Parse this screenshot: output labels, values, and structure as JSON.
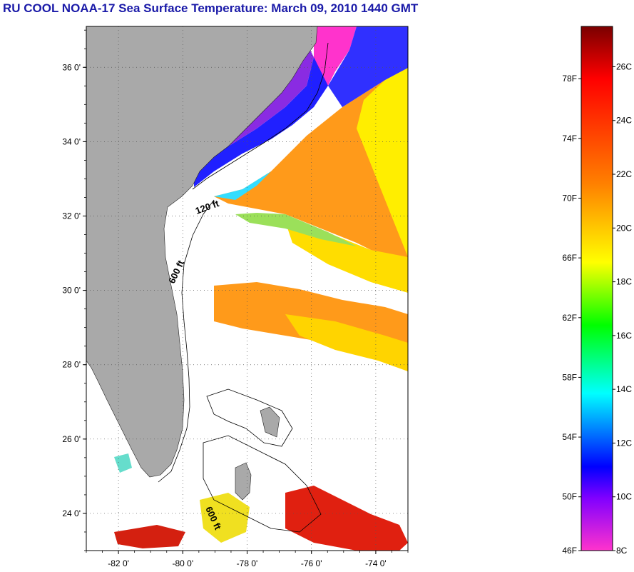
{
  "title": "RU COOL  NOAA-17  Sea Surface Temperature:  March 09, 2010 1440 GMT",
  "map": {
    "lat_ticks": [
      {
        "value": 36,
        "label": "36 0'"
      },
      {
        "value": 34,
        "label": "34 0'"
      },
      {
        "value": 32,
        "label": "32 0'"
      },
      {
        "value": 30,
        "label": "30 0'"
      },
      {
        "value": 28,
        "label": "28 0'"
      },
      {
        "value": 26,
        "label": "26 0'"
      },
      {
        "value": 24,
        "label": "24 0'"
      }
    ],
    "lon_ticks": [
      {
        "value": -82,
        "label": "-82 0'"
      },
      {
        "value": -80,
        "label": "-80 0'"
      },
      {
        "value": -78,
        "label": "-78 0'"
      },
      {
        "value": -76,
        "label": "-76 0'"
      },
      {
        "value": -74,
        "label": "-74 0'"
      }
    ],
    "lat_range": [
      23.0,
      37.1
    ],
    "lon_range": [
      -83.0,
      -73.0
    ],
    "contours": [
      {
        "label": "120 ft"
      },
      {
        "label": "600 ft"
      },
      {
        "label": "600 ft"
      }
    ],
    "colors": {
      "land": "#a9a9a9",
      "no_data": "#ffffff",
      "grid": "#555555"
    }
  },
  "colorbar": {
    "fahrenheit": [
      {
        "value": 78,
        "label": "78F"
      },
      {
        "value": 74,
        "label": "74F"
      },
      {
        "value": 70,
        "label": "70F"
      },
      {
        "value": 66,
        "label": "66F"
      },
      {
        "value": 62,
        "label": "62F"
      },
      {
        "value": 58,
        "label": "58F"
      },
      {
        "value": 54,
        "label": "54F"
      },
      {
        "value": 50,
        "label": "50F"
      },
      {
        "value": 46,
        "label": "46F"
      }
    ],
    "celsius": [
      {
        "value": 26,
        "label": "26C"
      },
      {
        "value": 24,
        "label": "24C"
      },
      {
        "value": 22,
        "label": "22C"
      },
      {
        "value": 20,
        "label": "20C"
      },
      {
        "value": 18,
        "label": "18C"
      },
      {
        "value": 16,
        "label": "16C"
      },
      {
        "value": 14,
        "label": "14C"
      },
      {
        "value": 12,
        "label": "12C"
      },
      {
        "value": 10,
        "label": "10C"
      },
      {
        "value": 8,
        "label": "8C"
      }
    ],
    "range_c": [
      8,
      27.5
    ],
    "gradient": [
      "#7a0000",
      "#ff0000",
      "#ff8000",
      "#ffff00",
      "#00ff00",
      "#00ffff",
      "#0000ff",
      "#8000ff",
      "#ff00ff"
    ]
  }
}
